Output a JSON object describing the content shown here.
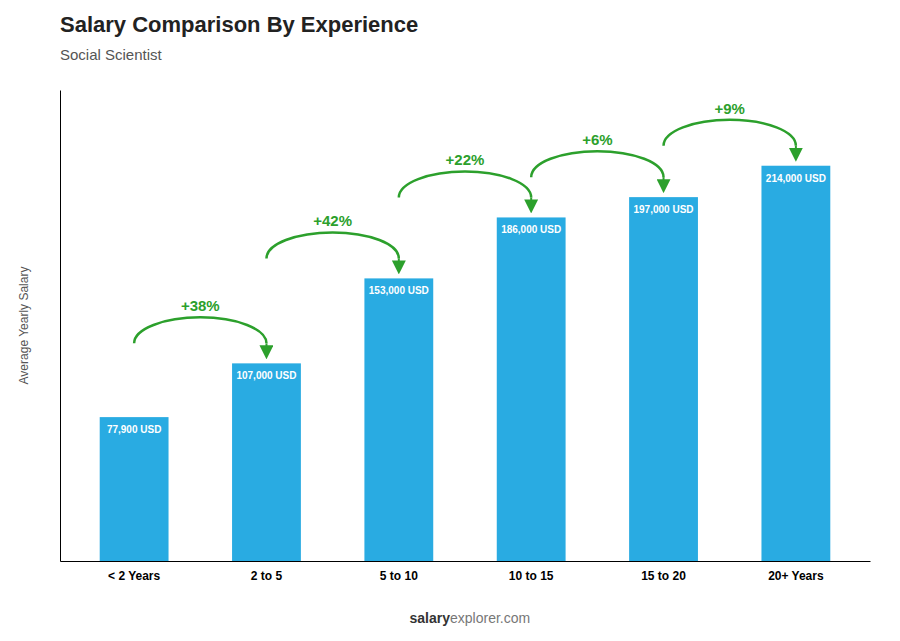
{
  "chart_data": {
    "type": "bar",
    "title": "Salary Comparison By Experience",
    "subtitle": "Social Scientist",
    "ylabel": "Average Yearly Salary",
    "categories": [
      "< 2 Years",
      "2 to 5",
      "5 to 10",
      "10 to 15",
      "15 to 20",
      "20+ Years"
    ],
    "values": [
      77900,
      107000,
      153000,
      186000,
      197000,
      214000
    ],
    "value_labels": [
      "77,900 USD",
      "107,000 USD",
      "153,000 USD",
      "186,000 USD",
      "197,000 USD",
      "214,000 USD"
    ],
    "data_labels": true,
    "annotations": [
      "+38%",
      "+42%",
      "+22%",
      "+6%",
      "+9%",
      "salary",
      "explorer.com"
    ],
    "color": "#29ABE2",
    "ylim": [
      0,
      255000
    ],
    "tick_labels": "x",
    "grid": false
  }
}
